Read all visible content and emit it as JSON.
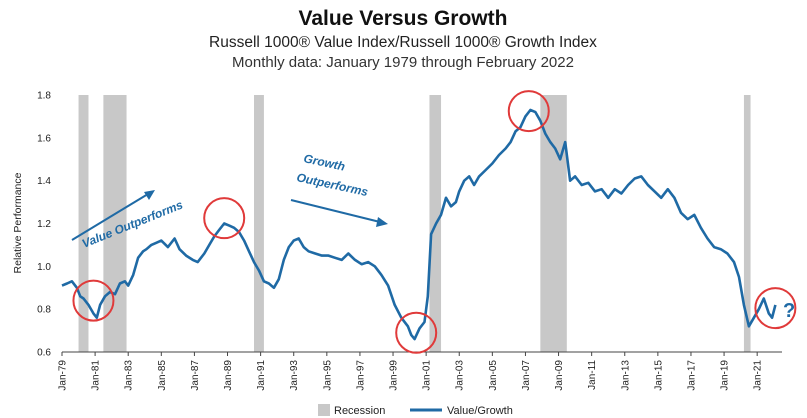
{
  "chart_data": {
    "type": "line",
    "title": "Value Versus Growth",
    "subtitle": "Russell 1000® Value Index/Russell 1000® Growth Index",
    "subtitle2": "Monthly data: January 1979 through February 2022",
    "ylabel": "Relative Performance",
    "xlabel": "",
    "ylim": [
      0.6,
      1.8
    ],
    "xlim": [
      1979.0,
      2022.5
    ],
    "y_ticks": [
      "0.6",
      "0.8",
      "1.0",
      "1.2",
      "1.4",
      "1.6",
      "1.8"
    ],
    "x_ticks": [
      "Jan-79",
      "Jan-81",
      "Jan-83",
      "Jan-85",
      "Jan-87",
      "Jan-89",
      "Jan-91",
      "Jan-93",
      "Jan-95",
      "Jan-97",
      "Jan-99",
      "Jan-01",
      "Jan-03",
      "Jan-05",
      "Jan-07",
      "Jan-09",
      "Jan-11",
      "Jan-13",
      "Jan-15",
      "Jan-17",
      "Jan-19",
      "Jan-21"
    ],
    "grid": false,
    "legend": "bottom",
    "series": [
      {
        "name": "Value/Growth",
        "color": "#1f6aa5",
        "x": [
          1979.0,
          1979.3,
          1979.6,
          1979.9,
          1980.1,
          1980.3,
          1980.6,
          1980.9,
          1981.1,
          1981.3,
          1981.6,
          1981.9,
          1982.2,
          1982.5,
          1982.8,
          1983.0,
          1983.3,
          1983.6,
          1983.9,
          1984.1,
          1984.4,
          1984.7,
          1985.0,
          1985.4,
          1985.8,
          1986.1,
          1986.5,
          1986.9,
          1987.2,
          1987.6,
          1987.9,
          1988.2,
          1988.5,
          1988.8,
          1989.1,
          1989.4,
          1989.7,
          1990.0,
          1990.3,
          1990.6,
          1990.9,
          1991.2,
          1991.5,
          1991.8,
          1992.1,
          1992.4,
          1992.7,
          1993.0,
          1993.3,
          1993.6,
          1993.9,
          1994.3,
          1994.7,
          1995.1,
          1995.5,
          1995.9,
          1996.3,
          1996.7,
          1997.1,
          1997.5,
          1997.9,
          1998.3,
          1998.7,
          1999.1,
          1999.5,
          1999.9,
          2000.1,
          2000.3,
          2000.6,
          2000.9,
          2001.1,
          2001.3,
          2001.6,
          2001.9,
          2002.2,
          2002.5,
          2002.8,
          2003.0,
          2003.3,
          2003.6,
          2003.9,
          2004.2,
          2004.6,
          2005.0,
          2005.4,
          2005.8,
          2006.1,
          2006.4,
          2006.7,
          2007.0,
          2007.3,
          2007.6,
          2007.9,
          2008.2,
          2008.5,
          2008.8,
          2009.1,
          2009.4,
          2009.7,
          2010.0,
          2010.4,
          2010.8,
          2011.2,
          2011.6,
          2012.0,
          2012.4,
          2012.8,
          2013.2,
          2013.6,
          2014.0,
          2014.4,
          2014.8,
          2015.2,
          2015.6,
          2016.0,
          2016.4,
          2016.8,
          2017.2,
          2017.6,
          2018.0,
          2018.4,
          2018.8,
          2019.2,
          2019.6,
          2019.9,
          2020.2,
          2020.5,
          2020.8,
          2021.1,
          2021.4,
          2021.7,
          2021.9,
          2022.1
        ],
        "values": [
          0.91,
          0.92,
          0.93,
          0.9,
          0.86,
          0.85,
          0.82,
          0.78,
          0.76,
          0.82,
          0.86,
          0.88,
          0.87,
          0.92,
          0.93,
          0.91,
          0.96,
          1.04,
          1.07,
          1.08,
          1.1,
          1.11,
          1.12,
          1.09,
          1.13,
          1.08,
          1.05,
          1.03,
          1.02,
          1.06,
          1.1,
          1.14,
          1.17,
          1.2,
          1.19,
          1.18,
          1.16,
          1.12,
          1.07,
          1.02,
          0.98,
          0.93,
          0.92,
          0.9,
          0.94,
          1.03,
          1.09,
          1.12,
          1.13,
          1.09,
          1.07,
          1.06,
          1.05,
          1.05,
          1.04,
          1.03,
          1.06,
          1.03,
          1.01,
          1.02,
          1.0,
          0.96,
          0.91,
          0.82,
          0.76,
          0.72,
          0.68,
          0.66,
          0.71,
          0.74,
          0.86,
          1.15,
          1.2,
          1.24,
          1.32,
          1.28,
          1.3,
          1.35,
          1.4,
          1.42,
          1.38,
          1.42,
          1.45,
          1.48,
          1.52,
          1.55,
          1.58,
          1.63,
          1.65,
          1.7,
          1.73,
          1.72,
          1.68,
          1.62,
          1.58,
          1.55,
          1.5,
          1.58,
          1.4,
          1.42,
          1.38,
          1.39,
          1.35,
          1.36,
          1.32,
          1.36,
          1.34,
          1.38,
          1.41,
          1.42,
          1.38,
          1.35,
          1.32,
          1.36,
          1.32,
          1.25,
          1.22,
          1.24,
          1.18,
          1.13,
          1.09,
          1.08,
          1.06,
          1.02,
          0.95,
          0.82,
          0.72,
          0.76,
          0.8,
          0.85,
          0.78,
          0.76,
          0.82
        ]
      }
    ],
    "recessions": [
      {
        "start": 1980.0,
        "end": 1980.6
      },
      {
        "start": 1981.5,
        "end": 1982.9
      },
      {
        "start": 1990.6,
        "end": 1991.2
      },
      {
        "start": 2001.2,
        "end": 2001.9
      },
      {
        "start": 2007.9,
        "end": 2009.5
      },
      {
        "start": 2020.2,
        "end": 2020.6
      }
    ],
    "highlight_circles": [
      {
        "x": 1980.9,
        "y": 0.84
      },
      {
        "x": 1988.8,
        "y": 1.225
      },
      {
        "x": 2000.4,
        "y": 0.69
      },
      {
        "x": 2007.2,
        "y": 1.725
      },
      {
        "x": 2022.1,
        "y": 0.805
      }
    ],
    "annotations": {
      "value_outperforms": "Value Outperforms",
      "growth_outperforms_line1": "Growth",
      "growth_outperforms_line2": "Outperforms",
      "question_mark": "?"
    },
    "legend_items": {
      "recession": "Recession",
      "series": "Value/Growth"
    }
  },
  "colors": {
    "line": "#1f6aa5",
    "recession": "#c8c8c8",
    "circle": "#e03a3a",
    "arrow": "#1f6aa5"
  }
}
